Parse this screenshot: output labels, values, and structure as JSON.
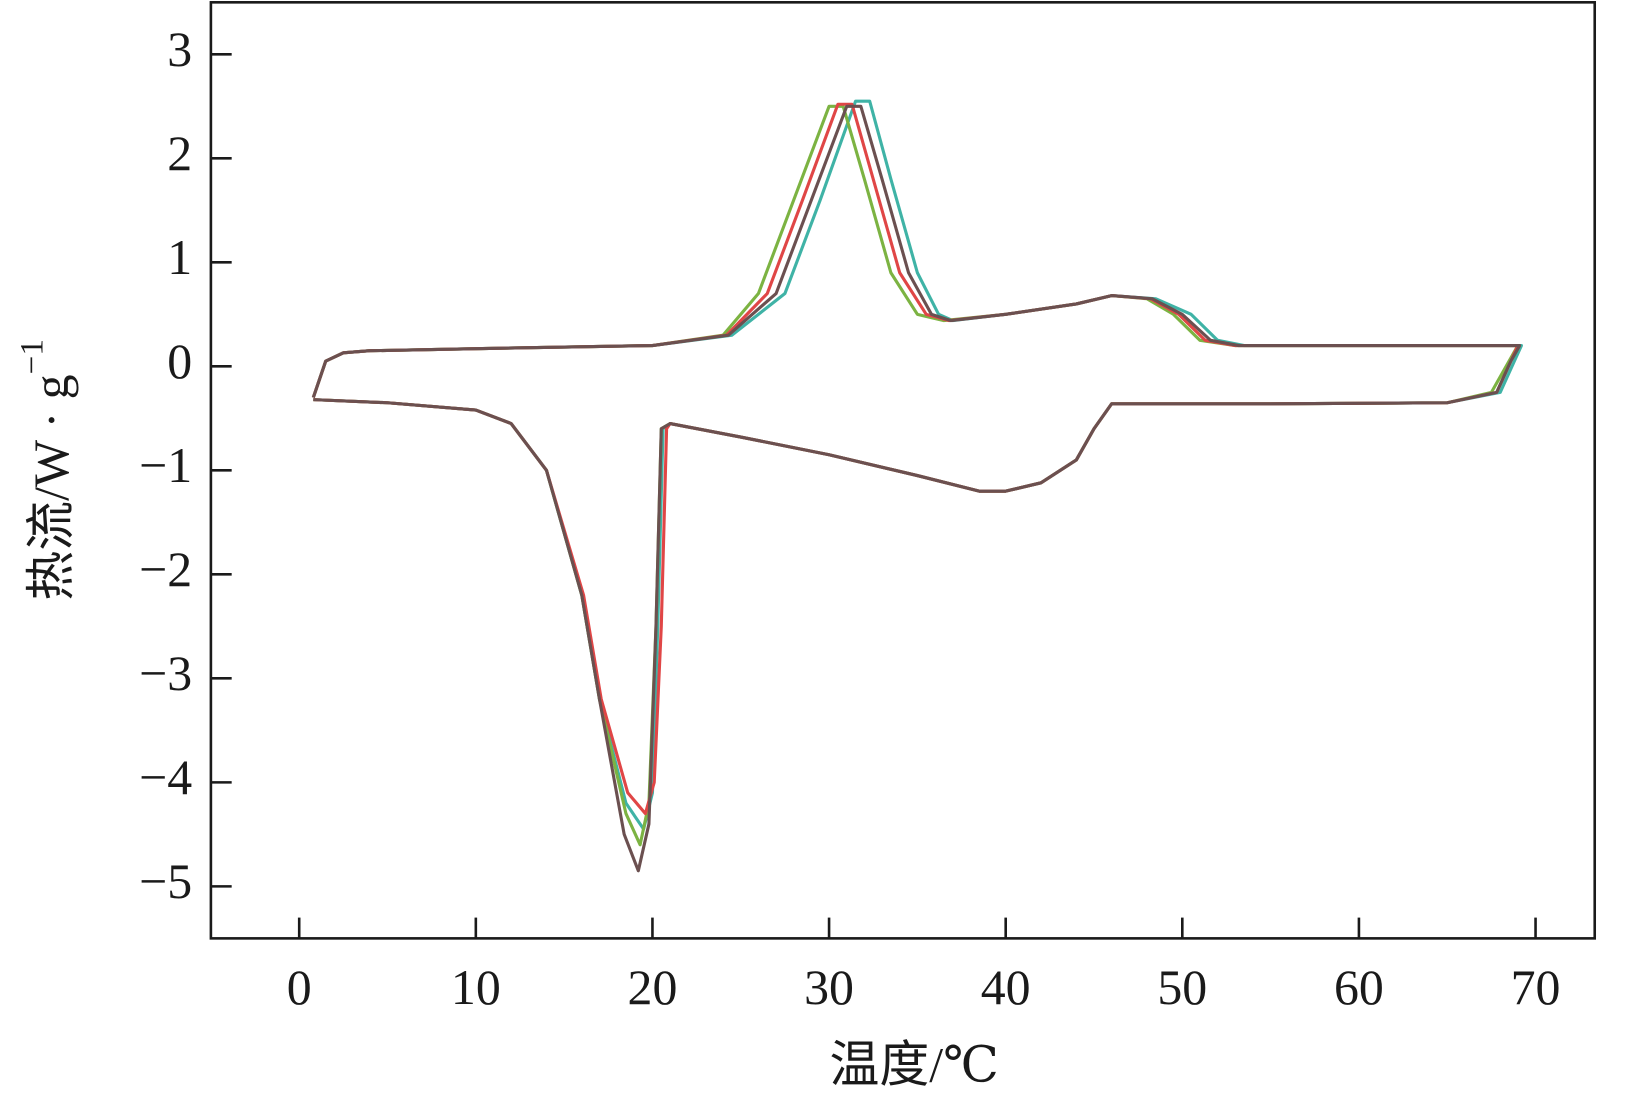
{
  "chart_data": {
    "type": "line",
    "x_label": "温度/℃",
    "y_label": "热流/W · g",
    "y_label_sup": "−1",
    "xlim": [
      -5,
      73.35
    ],
    "ylim": [
      -5.5,
      3.5
    ],
    "xticks": [
      0,
      10,
      20,
      30,
      40,
      50,
      60,
      70
    ],
    "yticks": [
      {
        "value": -5,
        "label": "−5"
      },
      {
        "value": -4,
        "label": "−4"
      },
      {
        "value": -3,
        "label": "−3"
      },
      {
        "value": -2,
        "label": "−2"
      },
      {
        "value": -1,
        "label": "−1"
      },
      0,
      1,
      2,
      3
    ],
    "grid": false,
    "series": [
      {
        "color": "#3fb3a6",
        "x": [
          0.8,
          1.5,
          2.5,
          4,
          10,
          20,
          24.5,
          27.5,
          29.5,
          31.5,
          32.3,
          33.5,
          35,
          36.2,
          37,
          40,
          44,
          46,
          48.5,
          50.5,
          52,
          53.5,
          60,
          69.2,
          68.8,
          68,
          65,
          55,
          46,
          45,
          44,
          42,
          40,
          38.5,
          35,
          30,
          25,
          21,
          20.6,
          20.3,
          20,
          19.5,
          18.5,
          17,
          16,
          14,
          12,
          10,
          5,
          0.8
        ],
        "values": [
          -0.3,
          0.05,
          0.13,
          0.15,
          0.17,
          0.2,
          0.3,
          0.7,
          1.6,
          2.55,
          2.55,
          1.8,
          0.9,
          0.5,
          0.44,
          0.5,
          0.6,
          0.68,
          0.65,
          0.5,
          0.25,
          0.2,
          0.2,
          0.2,
          0.05,
          -0.25,
          -0.35,
          -0.36,
          -0.36,
          -0.6,
          -0.9,
          -1.12,
          -1.2,
          -1.2,
          -1.05,
          -0.85,
          -0.68,
          -0.55,
          -0.6,
          -2.5,
          -4.1,
          -4.45,
          -4.2,
          -3.2,
          -2.2,
          -1,
          -0.55,
          -0.42,
          -0.35,
          -0.32
        ]
      },
      {
        "color": "#7cb342",
        "x": [
          0.8,
          1.5,
          2.5,
          4,
          10,
          20,
          24,
          26,
          28,
          30,
          30.8,
          32,
          33.5,
          35,
          36.5,
          40,
          44,
          46,
          48,
          49.5,
          51,
          53,
          60,
          69,
          68.5,
          67.5,
          65,
          55,
          46,
          45,
          44,
          42,
          40,
          38.5,
          35,
          30,
          25,
          21,
          20.5,
          20.2,
          19.8,
          19.3,
          18.5,
          17,
          16,
          14,
          12,
          10,
          5,
          0.8
        ],
        "values": [
          -0.3,
          0.05,
          0.13,
          0.15,
          0.17,
          0.2,
          0.3,
          0.7,
          1.6,
          2.5,
          2.5,
          1.8,
          0.9,
          0.5,
          0.44,
          0.5,
          0.6,
          0.68,
          0.65,
          0.5,
          0.25,
          0.2,
          0.2,
          0.2,
          0.05,
          -0.25,
          -0.35,
          -0.36,
          -0.36,
          -0.6,
          -0.9,
          -1.12,
          -1.2,
          -1.2,
          -1.05,
          -0.85,
          -0.68,
          -0.55,
          -0.6,
          -2.5,
          -4.2,
          -4.6,
          -4.3,
          -3.2,
          -2.2,
          -1,
          -0.55,
          -0.42,
          -0.35,
          -0.32
        ]
      },
      {
        "color": "#e04646",
        "x": [
          0.8,
          1.5,
          2.5,
          4,
          10,
          20,
          24.2,
          26.5,
          28.5,
          30.5,
          31.3,
          32.5,
          34,
          35.5,
          36.8,
          40,
          44,
          46,
          48.2,
          49.8,
          51.3,
          53,
          60,
          69,
          68.6,
          67.8,
          65,
          55,
          46,
          45,
          44,
          42,
          40,
          38.5,
          35,
          30,
          25,
          21,
          20.8,
          20.5,
          20.1,
          19.6,
          18.6,
          17.1,
          16.1,
          14,
          12,
          10,
          5,
          0.8
        ],
        "values": [
          -0.3,
          0.05,
          0.13,
          0.15,
          0.17,
          0.2,
          0.3,
          0.7,
          1.6,
          2.52,
          2.52,
          1.8,
          0.9,
          0.5,
          0.44,
          0.5,
          0.6,
          0.68,
          0.65,
          0.5,
          0.25,
          0.2,
          0.2,
          0.2,
          0.05,
          -0.25,
          -0.35,
          -0.36,
          -0.36,
          -0.6,
          -0.9,
          -1.12,
          -1.2,
          -1.2,
          -1.05,
          -0.85,
          -0.68,
          -0.55,
          -0.6,
          -2.5,
          -4.0,
          -4.3,
          -4.1,
          -3.2,
          -2.2,
          -1,
          -0.55,
          -0.42,
          -0.35,
          -0.32
        ]
      },
      {
        "color": "#6b5050",
        "x": [
          0.8,
          1.5,
          2.5,
          4,
          10,
          20,
          24.3,
          27,
          29,
          31,
          31.8,
          33,
          34.5,
          35.8,
          36.9,
          40,
          44,
          46,
          48.3,
          50,
          51.6,
          53.2,
          60,
          69.1,
          68.6,
          67.8,
          65,
          55,
          46,
          45,
          44,
          42,
          40,
          38.5,
          35,
          30,
          25,
          21,
          20.5,
          20.2,
          19.8,
          19.2,
          18.4,
          17,
          16,
          14,
          12,
          10,
          5,
          0.8
        ],
        "values": [
          -0.3,
          0.05,
          0.13,
          0.15,
          0.17,
          0.2,
          0.3,
          0.7,
          1.6,
          2.5,
          2.5,
          1.8,
          0.9,
          0.5,
          0.44,
          0.5,
          0.6,
          0.68,
          0.65,
          0.5,
          0.25,
          0.2,
          0.2,
          0.2,
          0.05,
          -0.25,
          -0.35,
          -0.36,
          -0.36,
          -0.6,
          -0.9,
          -1.12,
          -1.2,
          -1.2,
          -1.05,
          -0.85,
          -0.68,
          -0.55,
          -0.6,
          -2.5,
          -4.4,
          -4.85,
          -4.5,
          -3.2,
          -2.2,
          -1,
          -0.55,
          -0.42,
          -0.35,
          -0.32
        ]
      }
    ]
  }
}
